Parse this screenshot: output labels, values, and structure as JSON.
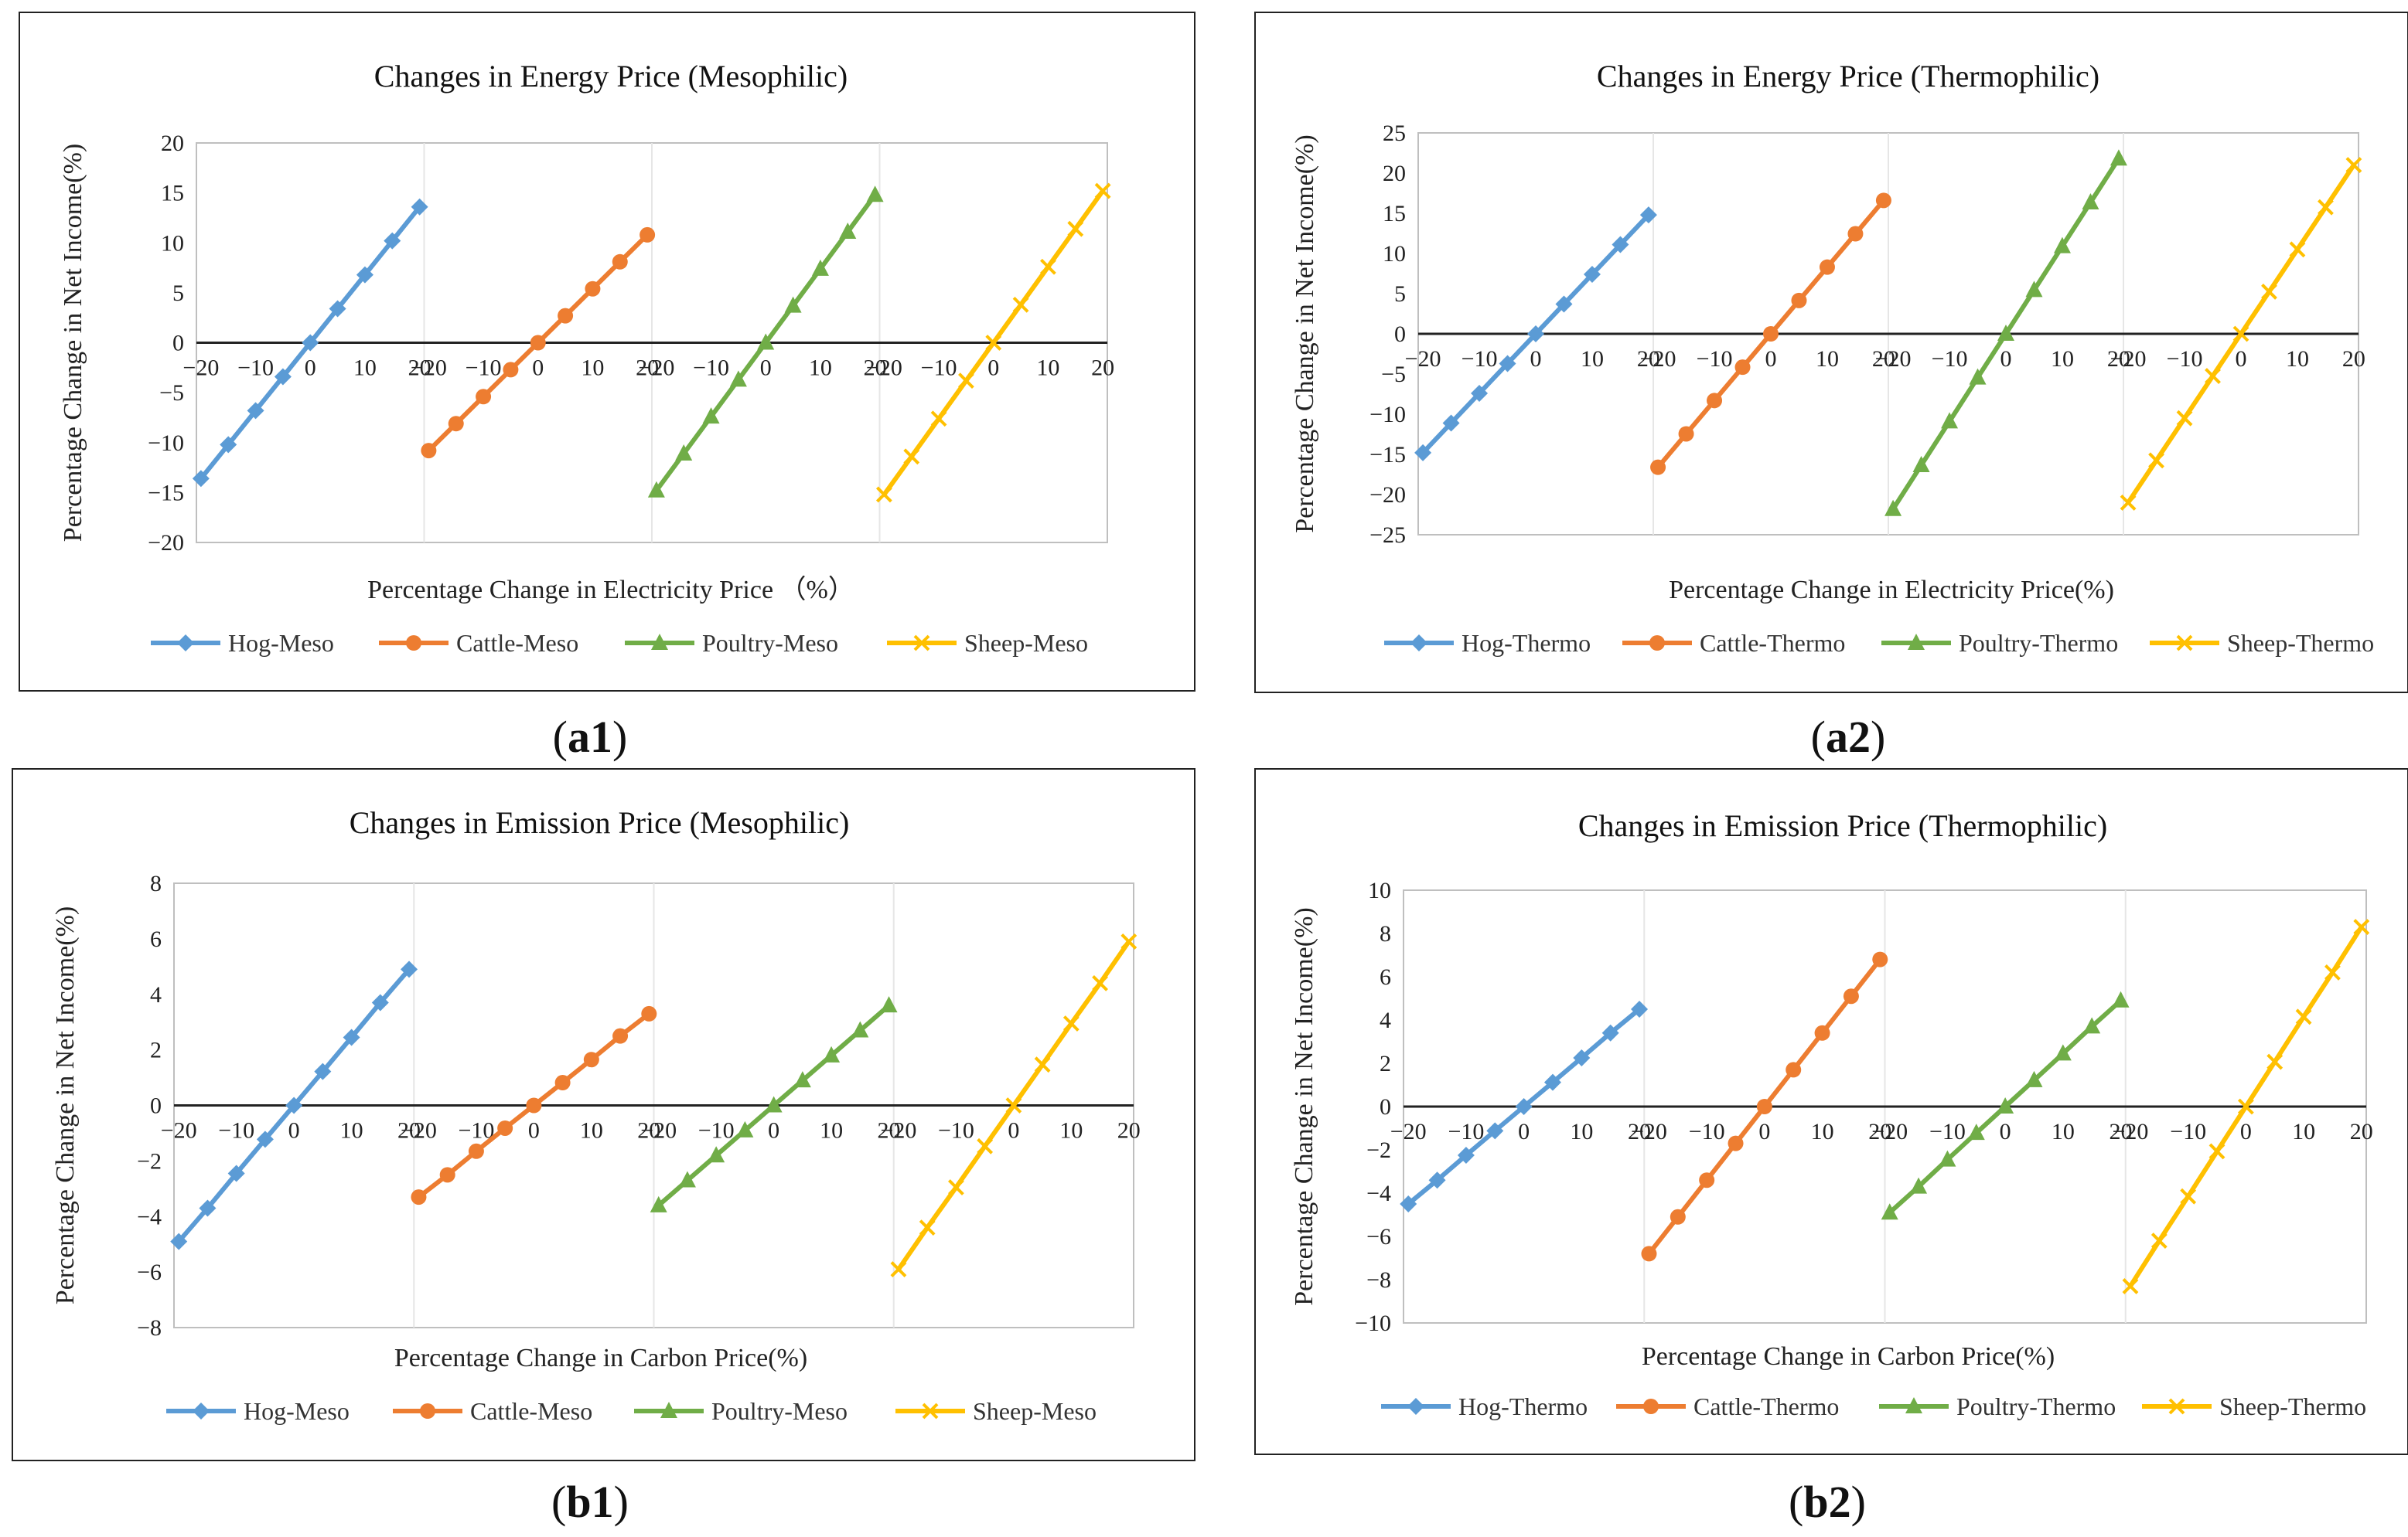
{
  "figure": {
    "captions": [
      "a1",
      "a2",
      "b1",
      "b2"
    ]
  },
  "chart_data": [
    {
      "id": "a1",
      "type": "line",
      "title": "Changes in Energy Price (Mesophilic)",
      "xlabel": "Percentage Change in Electricity Price （%）",
      "ylabel": "Percentage Change in Net Income(%)",
      "ylim": [
        -20,
        20
      ],
      "ystep": 5,
      "x": [
        -20,
        -15,
        -10,
        -5,
        0,
        5,
        10,
        15,
        20
      ],
      "x_tick_labels": [
        "−20",
        "−10",
        "0",
        "10",
        "20"
      ],
      "series": [
        {
          "name": "Hog-Meso",
          "color": "#5b9bd5",
          "marker": "diamond",
          "values": [
            -13.6,
            -10.2,
            -6.8,
            -3.4,
            0,
            3.4,
            6.8,
            10.2,
            13.6
          ]
        },
        {
          "name": "Cattle-Meso",
          "color": "#ed7d31",
          "marker": "circle",
          "values": [
            -10.8,
            -8.1,
            -5.4,
            -2.7,
            0,
            2.7,
            5.4,
            8.1,
            10.8
          ]
        },
        {
          "name": "Poultry-Meso",
          "color": "#70ad47",
          "marker": "triangle",
          "values": [
            -14.8,
            -11.1,
            -7.4,
            -3.7,
            0,
            3.7,
            7.4,
            11.1,
            14.8
          ]
        },
        {
          "name": "Sheep-Meso",
          "color": "#ffc000",
          "marker": "x",
          "values": [
            -15.2,
            -11.4,
            -7.6,
            -3.8,
            0,
            3.8,
            7.6,
            11.4,
            15.2
          ]
        }
      ]
    },
    {
      "id": "a2",
      "type": "line",
      "title": "Changes in Energy Price (Thermophilic)",
      "xlabel": "Percentage Change in Electricity Price(%)",
      "ylabel": "Percentage Change in Net Income(%)",
      "ylim": [
        -25,
        25
      ],
      "ystep": 5,
      "x": [
        -20,
        -15,
        -10,
        -5,
        0,
        5,
        10,
        15,
        20
      ],
      "x_tick_labels": [
        "−20",
        "−10",
        "0",
        "10",
        "20"
      ],
      "series": [
        {
          "name": "Hog-Thermo",
          "color": "#5b9bd5",
          "marker": "diamond",
          "values": [
            -14.8,
            -11.1,
            -7.4,
            -3.7,
            0,
            3.7,
            7.4,
            11.1,
            14.8
          ]
        },
        {
          "name": "Cattle-Thermo",
          "color": "#ed7d31",
          "marker": "circle",
          "values": [
            -16.6,
            -12.45,
            -8.3,
            -4.15,
            0,
            4.15,
            8.3,
            12.45,
            16.6
          ]
        },
        {
          "name": "Poultry-Thermo",
          "color": "#70ad47",
          "marker": "triangle",
          "values": [
            -21.8,
            -16.35,
            -10.9,
            -5.45,
            0,
            5.45,
            10.9,
            16.35,
            21.8
          ]
        },
        {
          "name": "Sheep-Thermo",
          "color": "#ffc000",
          "marker": "x",
          "values": [
            -21.0,
            -15.75,
            -10.5,
            -5.25,
            0,
            5.25,
            10.5,
            15.75,
            21.0
          ]
        }
      ]
    },
    {
      "id": "b1",
      "type": "line",
      "title": "Changes in Emission Price (Mesophilic)",
      "xlabel": "Percentage Change in Carbon Price(%)",
      "ylabel": "Percentage Change in Net Income(%)",
      "ylim": [
        -8,
        8
      ],
      "ystep": 2,
      "x": [
        -20,
        -15,
        -10,
        -5,
        0,
        5,
        10,
        15,
        20
      ],
      "x_tick_labels": [
        "−20",
        "−10",
        "0",
        "10",
        "20"
      ],
      "series": [
        {
          "name": "Hog-Meso",
          "color": "#5b9bd5",
          "marker": "diamond",
          "values": [
            -4.9,
            -3.7,
            -2.45,
            -1.22,
            0,
            1.22,
            2.45,
            3.7,
            4.9
          ]
        },
        {
          "name": "Cattle-Meso",
          "color": "#ed7d31",
          "marker": "circle",
          "values": [
            -3.3,
            -2.5,
            -1.65,
            -0.82,
            0,
            0.82,
            1.65,
            2.5,
            3.3
          ]
        },
        {
          "name": "Poultry-Meso",
          "color": "#70ad47",
          "marker": "triangle",
          "values": [
            -3.6,
            -2.7,
            -1.8,
            -0.9,
            0,
            0.9,
            1.8,
            2.7,
            3.6
          ]
        },
        {
          "name": "Sheep-Meso",
          "color": "#ffc000",
          "marker": "x",
          "values": [
            -5.9,
            -4.4,
            -2.95,
            -1.47,
            0,
            1.47,
            2.95,
            4.4,
            5.9
          ]
        }
      ]
    },
    {
      "id": "b2",
      "type": "line",
      "title": "Changes in Emission Price (Thermophilic)",
      "xlabel": "Percentage Change in Carbon Price(%)",
      "ylabel": "Percentage Change in Net Income(%)",
      "ylim": [
        -10,
        10
      ],
      "ystep": 2,
      "x": [
        -20,
        -15,
        -10,
        -5,
        0,
        5,
        10,
        15,
        20
      ],
      "x_tick_labels": [
        "−20",
        "−10",
        "0",
        "10",
        "20"
      ],
      "series": [
        {
          "name": "Hog-Thermo",
          "color": "#5b9bd5",
          "marker": "diamond",
          "values": [
            -4.5,
            -3.4,
            -2.25,
            -1.12,
            0,
            1.12,
            2.25,
            3.4,
            4.5
          ]
        },
        {
          "name": "Cattle-Thermo",
          "color": "#ed7d31",
          "marker": "circle",
          "values": [
            -6.8,
            -5.1,
            -3.4,
            -1.7,
            0,
            1.7,
            3.4,
            5.1,
            6.8
          ]
        },
        {
          "name": "Poultry-Thermo",
          "color": "#70ad47",
          "marker": "triangle",
          "values": [
            -4.9,
            -3.7,
            -2.45,
            -1.22,
            0,
            1.22,
            2.45,
            3.7,
            4.9
          ]
        },
        {
          "name": "Sheep-Thermo",
          "color": "#ffc000",
          "marker": "x",
          "values": [
            -8.3,
            -6.2,
            -4.15,
            -2.07,
            0,
            2.07,
            4.15,
            6.2,
            8.3
          ]
        }
      ]
    }
  ]
}
